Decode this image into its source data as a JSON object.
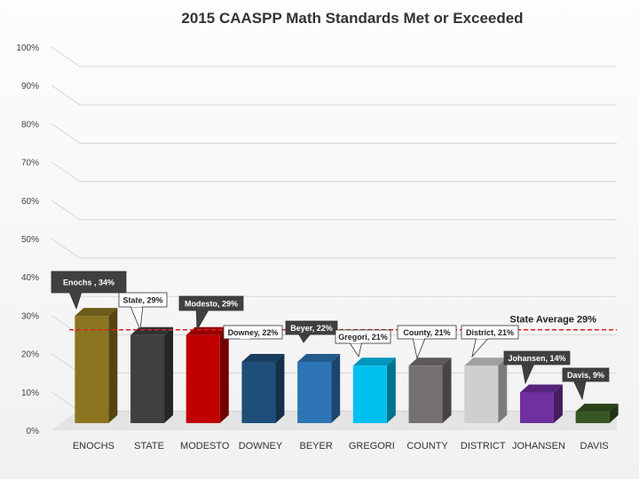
{
  "chart_data": {
    "type": "bar",
    "title": "2015 CAASPP Math Standards Met or Exceeded",
    "xlabel": "",
    "ylabel": "",
    "ylim": [
      0,
      100
    ],
    "yticks": [
      "0%",
      "10%",
      "20%",
      "30%",
      "40%",
      "50%",
      "60%",
      "70%",
      "80%",
      "90%",
      "100%"
    ],
    "categories": [
      "ENOCHS",
      "STATE",
      "MODESTO",
      "DOWNEY",
      "BEYER",
      "GREGORI",
      "COUNTY",
      "DISTRICT",
      "JOHANSEN",
      "DAVIS"
    ],
    "values": [
      34,
      29,
      29,
      22,
      22,
      21,
      21,
      21,
      14,
      9
    ],
    "data_labels": [
      "Enochs , 34%",
      "State, 29%",
      "Modesto, 29%",
      "Downey, 22%",
      "Beyer, 22%",
      "Gregori, 21%",
      "County, 21%",
      "District, 21%",
      "Johansen, 14%",
      "Davis, 9%"
    ],
    "bar_colors": [
      "#8a7420",
      "#404040",
      "#c00000",
      "#1f4e79",
      "#2e75b6",
      "#00c0f0",
      "#767171",
      "#d0cece",
      "#7030a0",
      "#375623"
    ],
    "label_styles": [
      "dark",
      "light",
      "dark",
      "light",
      "dark",
      "light",
      "light",
      "light",
      "dark",
      "dark"
    ],
    "reference_line": {
      "value": 29,
      "label": "State Average 29%",
      "color": "#e02020"
    },
    "grid": true,
    "legend": "none"
  }
}
